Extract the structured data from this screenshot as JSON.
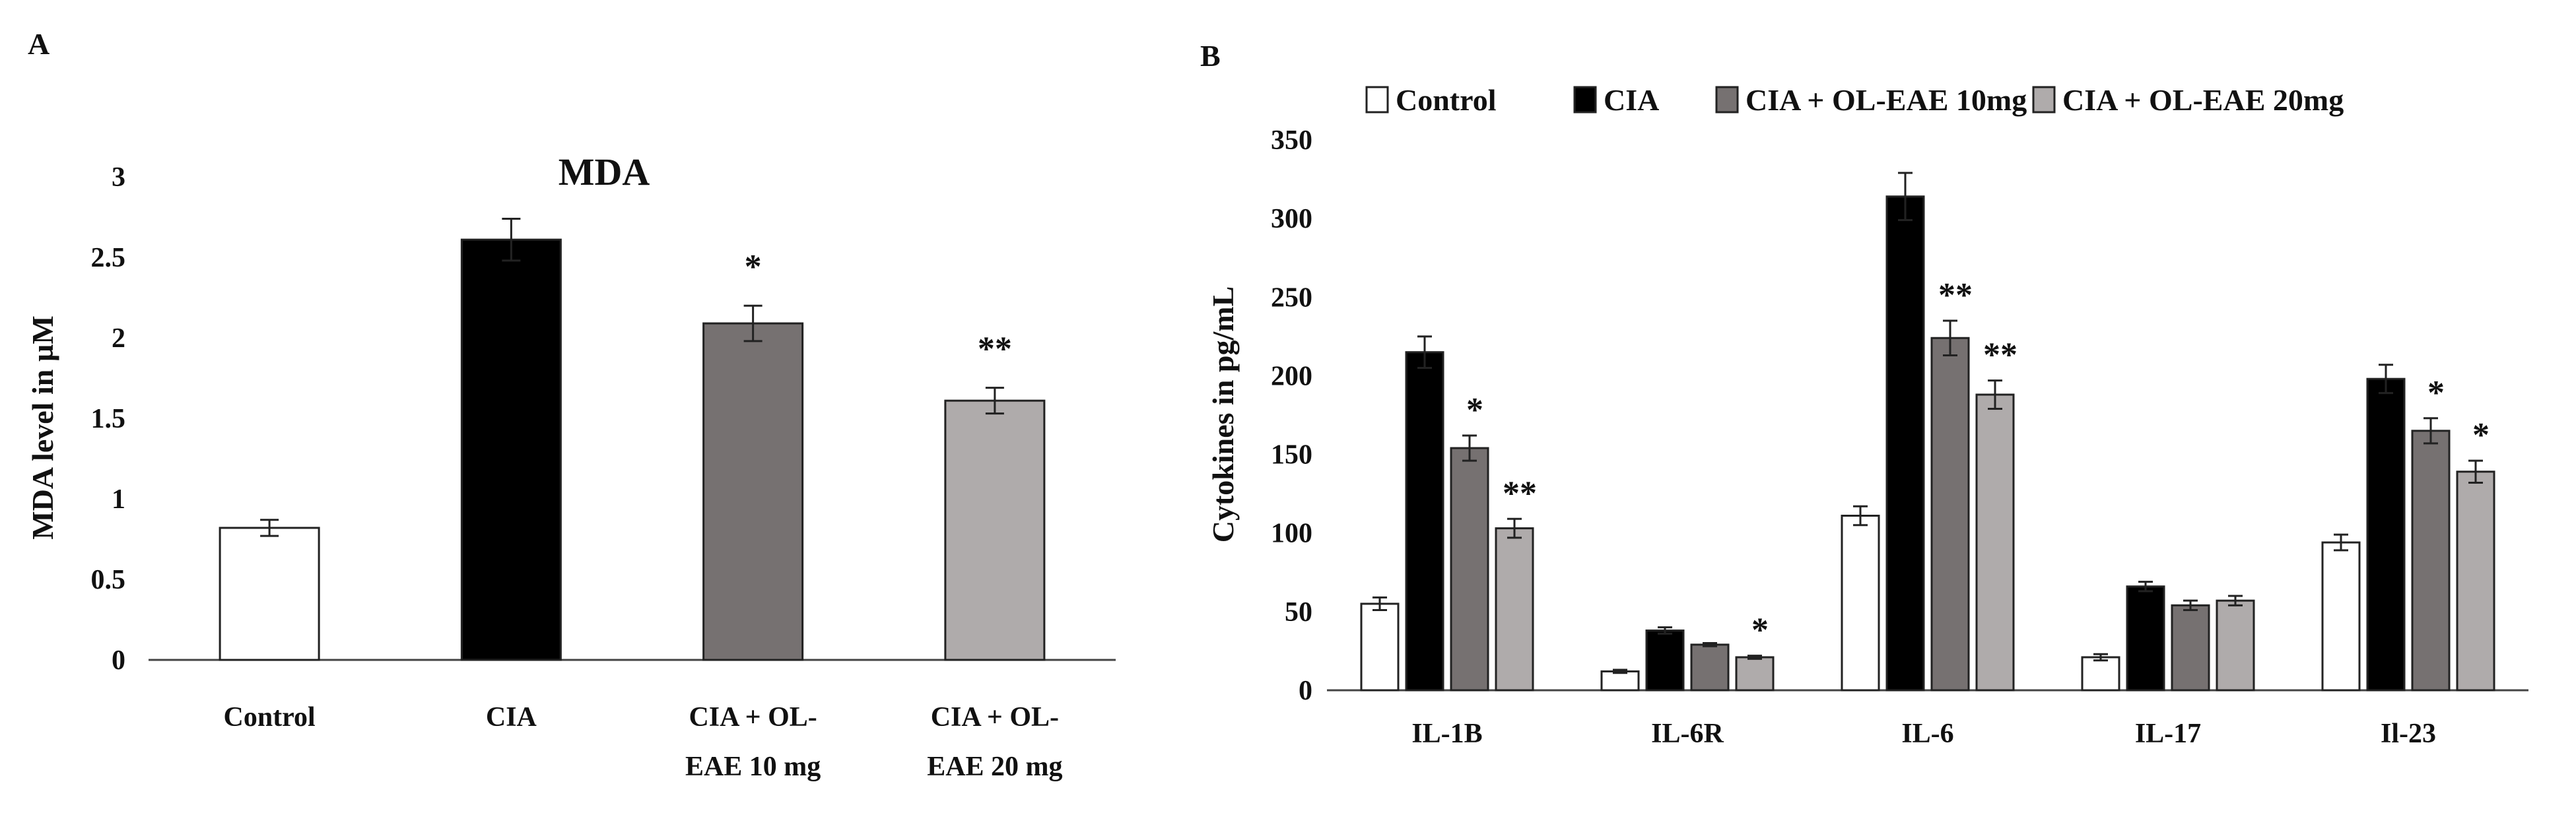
{
  "panel_a_label": "A",
  "panel_b_label": "B",
  "colors": {
    "control": "#ffffff",
    "cia": "#000000",
    "ol10": "#767171",
    "ol20": "#afabab",
    "stroke": "#222222"
  },
  "chart_data": [
    {
      "type": "bar",
      "title": "MDA",
      "xlabel": "",
      "ylabel": "MDA level in µM",
      "ylim": [
        0,
        3
      ],
      "yticks": [
        "0",
        "0.5",
        "1",
        "1.5",
        "2",
        "2.5",
        "3"
      ],
      "categories": [
        [
          "Control"
        ],
        [
          "CIA"
        ],
        [
          "CIA + OL-",
          "EAE 10 mg"
        ],
        [
          "CIA + OL-",
          "EAE 20 mg"
        ]
      ],
      "values": [
        0.82,
        2.61,
        2.09,
        1.61
      ],
      "errors": [
        0.05,
        0.13,
        0.11,
        0.08
      ],
      "significance": [
        "",
        "",
        "*",
        "**"
      ],
      "color_keys": [
        "control",
        "cia",
        "ol10",
        "ol20"
      ]
    },
    {
      "type": "bar",
      "title": "",
      "xlabel": "",
      "ylabel": "Cytokines in pg/mL",
      "ylim": [
        0,
        350
      ],
      "yticks": [
        "0",
        "50",
        "100",
        "150",
        "200",
        "250",
        "300",
        "350"
      ],
      "categories": [
        "IL-1B",
        "IL-6R",
        "IL-6",
        "IL-17",
        "Il-23"
      ],
      "legend": [
        "Control",
        "CIA",
        "CIA + OL-EAE 10mg",
        "CIA + OL-EAE 20mg"
      ],
      "series": [
        {
          "name": "Control",
          "color_key": "control",
          "values": [
            55,
            12,
            111,
            21,
            94
          ],
          "errors": [
            4,
            1,
            6,
            2,
            5
          ],
          "significance": [
            "",
            "",
            "",
            "",
            ""
          ]
        },
        {
          "name": "CIA",
          "color_key": "cia",
          "values": [
            215,
            38,
            314,
            66,
            198
          ],
          "errors": [
            10,
            2,
            15,
            3,
            9
          ],
          "significance": [
            "",
            "",
            "",
            "",
            ""
          ]
        },
        {
          "name": "CIA + OL-EAE 10mg",
          "color_key": "ol10",
          "values": [
            154,
            29,
            224,
            54,
            165
          ],
          "errors": [
            8,
            1,
            11,
            3,
            8
          ],
          "significance": [
            "*",
            "",
            "**",
            "",
            "*"
          ]
        },
        {
          "name": "CIA + OL-EAE 20mg",
          "color_key": "ol20",
          "values": [
            103,
            21,
            188,
            57,
            139
          ],
          "errors": [
            6,
            1,
            9,
            3,
            7
          ],
          "significance": [
            "**",
            "*",
            "**",
            "",
            "*"
          ]
        }
      ]
    }
  ]
}
